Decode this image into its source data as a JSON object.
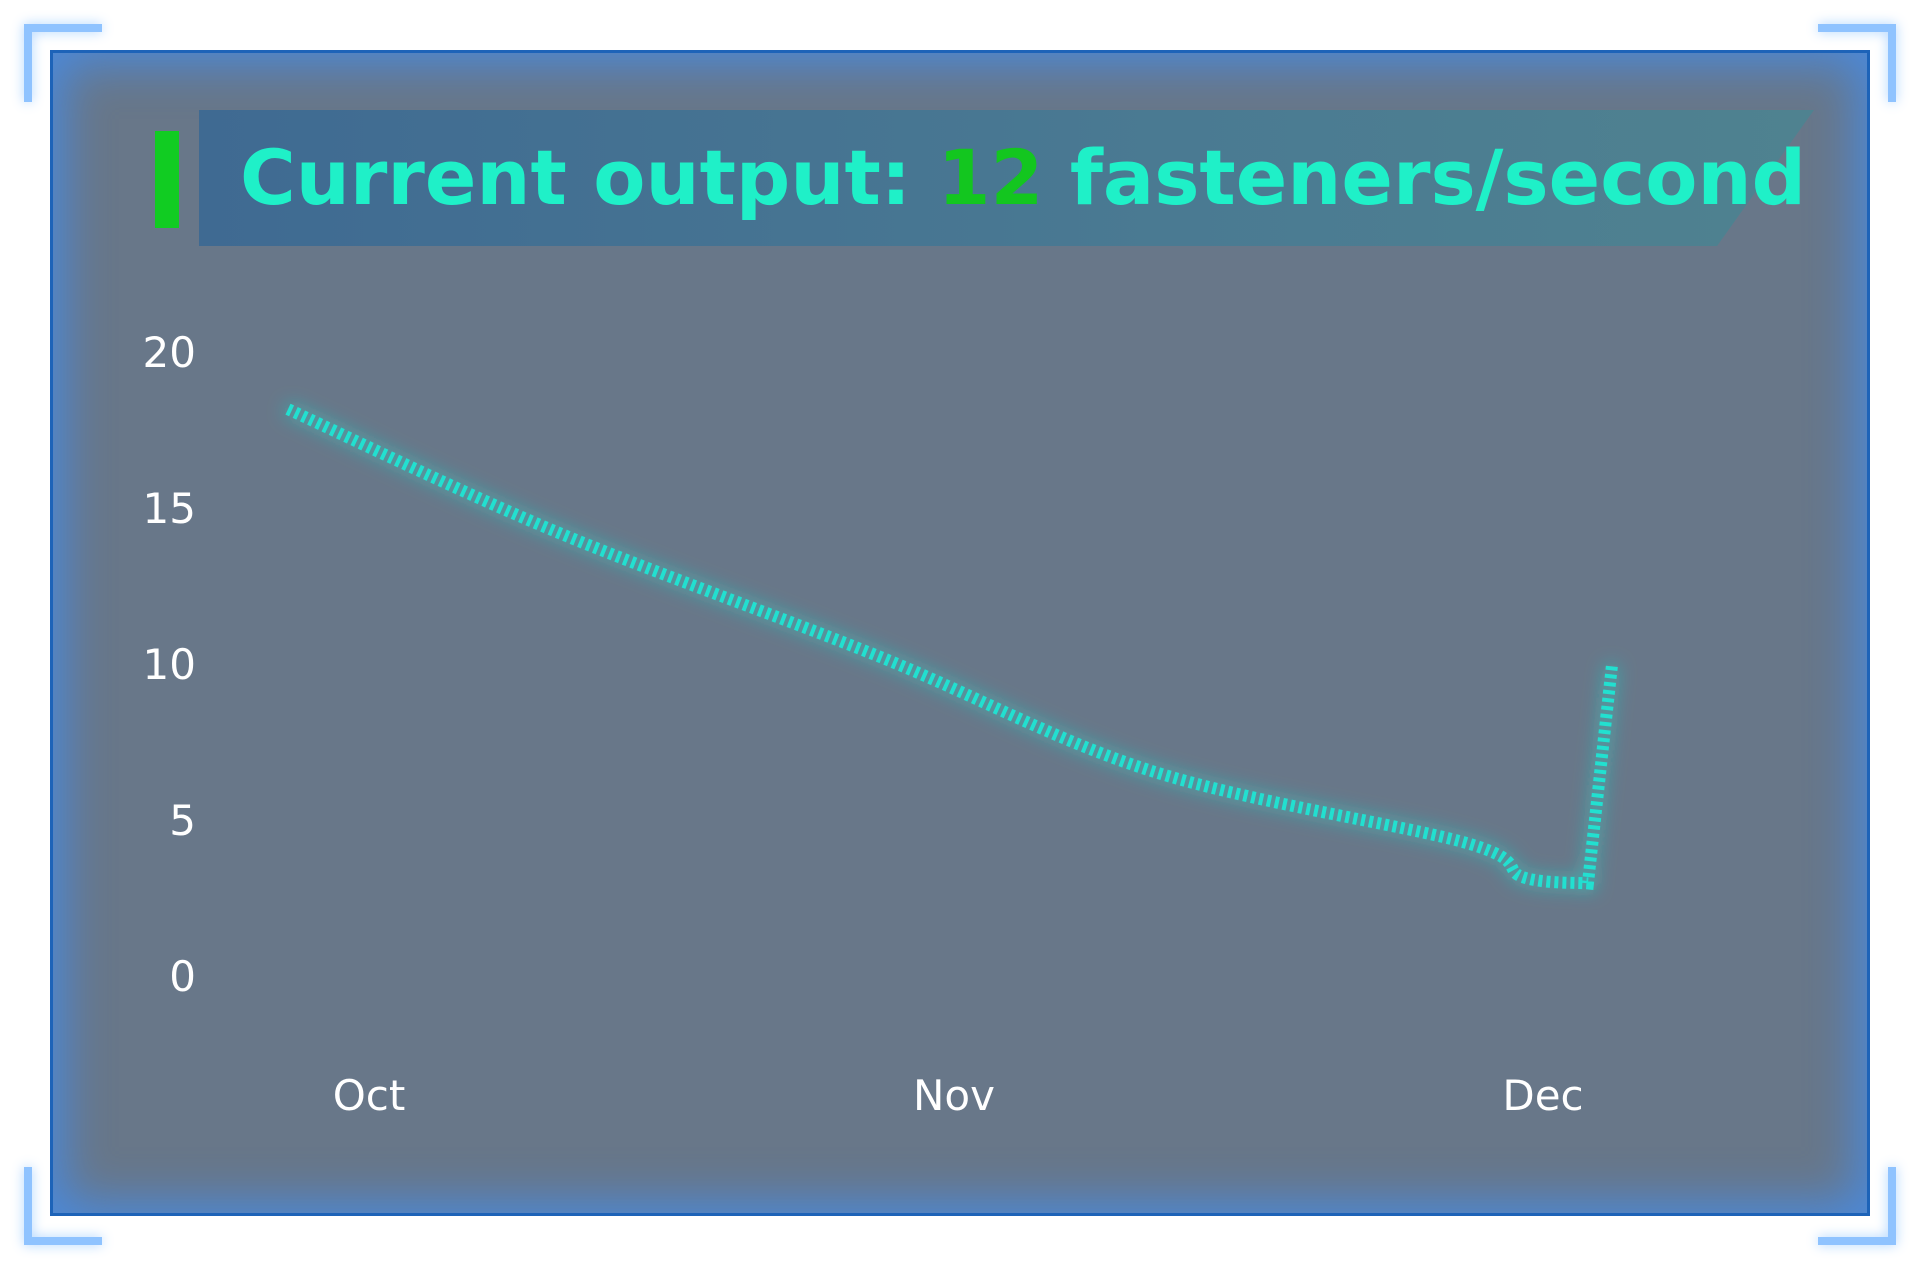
{
  "title": {
    "prefix": "Current output: ",
    "value": "12",
    "suffix": " fasteners/second"
  },
  "colors": {
    "panel": "#687789",
    "border": "#1d63b8",
    "line": "#20e0d0",
    "title_text": "#1ff0c8",
    "title_value": "#13c61f",
    "axis_text": "#ffffff"
  },
  "chart_data": {
    "type": "line",
    "title": "",
    "xlabel": "",
    "ylabel": "",
    "ylim": [
      0,
      20
    ],
    "yticks": [
      "0",
      "5",
      "10",
      "15",
      "20"
    ],
    "x_tick_labels": [
      "Oct",
      "Nov",
      "Dec"
    ],
    "grid": false,
    "legend": "none",
    "line_style": "dashed-glow",
    "series": [
      {
        "points": [
          {
            "x": "Oct 1",
            "y": 18.2
          },
          {
            "x": "Oct 15",
            "y": 14.3
          },
          {
            "x": "Nov 1",
            "y": 10.3
          },
          {
            "x": "Nov 15",
            "y": 6.6
          },
          {
            "x": "Dec 1",
            "y": 4.3
          },
          {
            "x": "Dec 15",
            "y": 3.2
          },
          {
            "x": "Dec 31",
            "y": 3.0
          },
          {
            "x": "Jan 1",
            "y": 10.0
          }
        ]
      }
    ]
  }
}
